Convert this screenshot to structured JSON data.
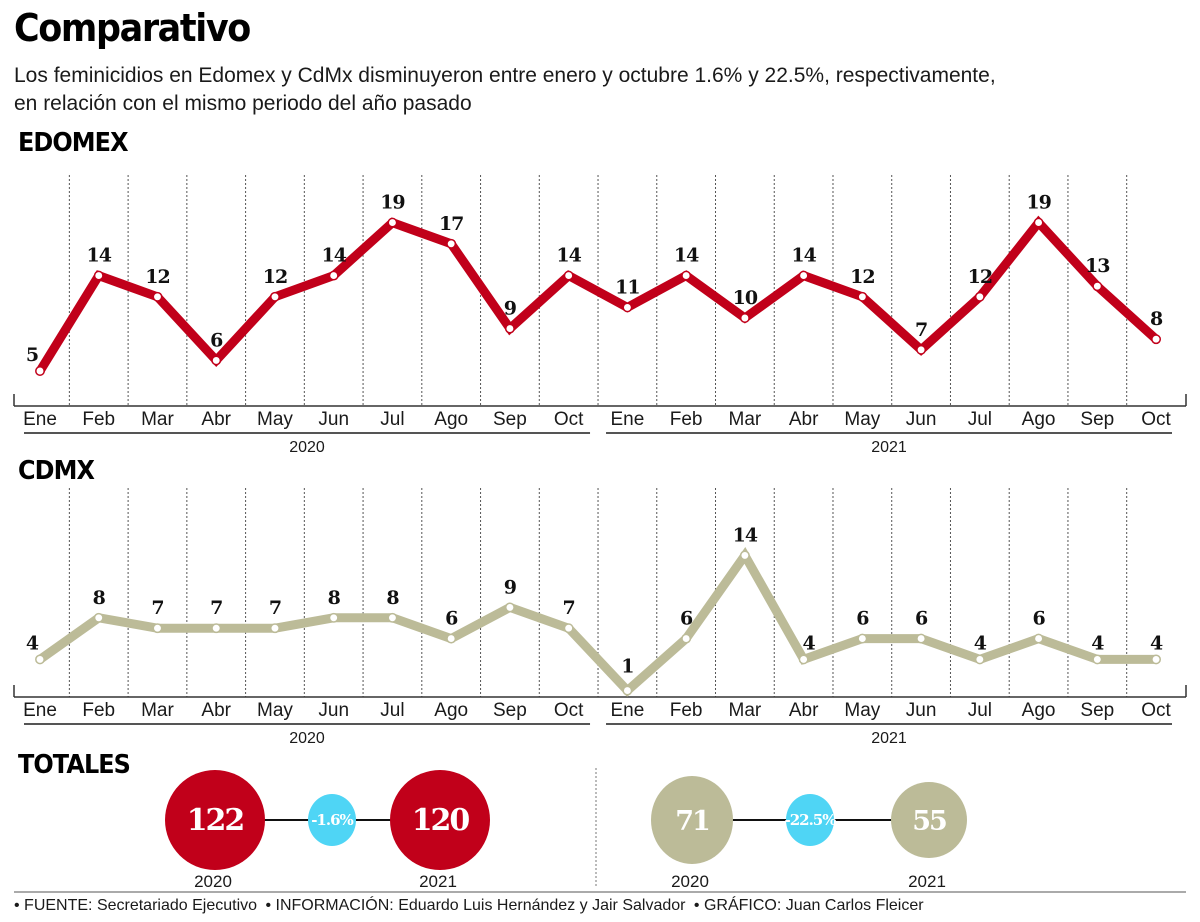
{
  "header": {
    "title": "Comparativo",
    "subtitle_line1": "Los feminicidios en Edomex y CdMx disminuyeron entre enero y octubre 1.6% y 22.5%, respectivamente,",
    "subtitle_line2": "en relación con el mismo periodo del año pasado"
  },
  "colors": {
    "edomex": "#c1001a",
    "cdmx": "#bcbb98",
    "percent_badge": "#4fd5f5",
    "text": "#111111"
  },
  "sections": {
    "edomex_label": "EDOMEX",
    "cdmx_label": "CDMX",
    "totals_label": "TOTALES"
  },
  "chart_data": [
    {
      "type": "line",
      "title": "EDOMEX",
      "categories": [
        "Ene",
        "Feb",
        "Mar",
        "Abr",
        "May",
        "Jun",
        "Jul",
        "Ago",
        "Sep",
        "Oct",
        "Ene",
        "Feb",
        "Mar",
        "Abr",
        "May",
        "Jun",
        "Jul",
        "Ago",
        "Sep",
        "Oct"
      ],
      "year_groups": [
        {
          "label": "2020",
          "months": 10
        },
        {
          "label": "2021",
          "months": 10
        }
      ],
      "series": [
        {
          "name": "Feminicidios Edomex",
          "values": [
            5,
            14,
            12,
            6,
            12,
            14,
            19,
            17,
            9,
            14,
            11,
            14,
            10,
            14,
            12,
            7,
            12,
            19,
            13,
            8
          ]
        }
      ],
      "grid": "vertical-dotted",
      "ylim": [
        0,
        20
      ]
    },
    {
      "type": "line",
      "title": "CDMX",
      "categories": [
        "Ene",
        "Feb",
        "Mar",
        "Abr",
        "May",
        "Jun",
        "Jul",
        "Ago",
        "Sep",
        "Oct",
        "Ene",
        "Feb",
        "Mar",
        "Abr",
        "May",
        "Jun",
        "Jul",
        "Ago",
        "Sep",
        "Oct"
      ],
      "year_groups": [
        {
          "label": "2020",
          "months": 10
        },
        {
          "label": "2021",
          "months": 10
        }
      ],
      "series": [
        {
          "name": "Feminicidios CDMX",
          "values": [
            4,
            8,
            7,
            7,
            7,
            8,
            8,
            6,
            9,
            7,
            1,
            6,
            14,
            4,
            6,
            6,
            4,
            6,
            4,
            4
          ]
        }
      ],
      "grid": "vertical-dotted",
      "ylim": [
        0,
        15
      ]
    },
    {
      "type": "table",
      "title": "TOTALES",
      "groups": [
        {
          "name": "EDOMEX",
          "year_a": "2020",
          "value_a": 122,
          "year_b": "2021",
          "value_b": 120,
          "change": "-1.6%"
        },
        {
          "name": "CDMX",
          "year_a": "2020",
          "value_a": 71,
          "year_b": "2021",
          "value_b": 55,
          "change": "-22.5%"
        }
      ]
    }
  ],
  "footer": {
    "source": "• FUENTE: Secretariado Ejecutivo",
    "info": "• INFORMACIÓN: Eduardo Luis Hernández y Jair Salvador",
    "graphic": "• GRÁFICO: Juan Carlos Fleicer"
  }
}
